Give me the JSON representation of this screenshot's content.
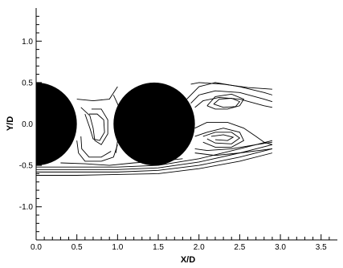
{
  "chart_data": {
    "type": "line",
    "title": "",
    "xlabel": "X/D",
    "ylabel": "Y/D",
    "xlim": [
      0,
      3.7
    ],
    "ylim": [
      -1.4,
      1.4
    ],
    "x_ticks": [
      {
        "value": 0,
        "label": "0.0"
      },
      {
        "value": 0.5,
        "label": "0.5"
      },
      {
        "value": 1.0,
        "label": "1.0"
      },
      {
        "value": 1.5,
        "label": "1.5"
      },
      {
        "value": 2.0,
        "label": "2.0"
      },
      {
        "value": 2.5,
        "label": "2.5"
      },
      {
        "value": 3.0,
        "label": "3.0"
      },
      {
        "value": 3.5,
        "label": "3.5"
      }
    ],
    "y_ticks": [
      {
        "value": 1.0,
        "label": "1.0"
      },
      {
        "value": 0.5,
        "label": "0.5"
      },
      {
        "value": 0.0,
        "label": "0.0"
      },
      {
        "value": -0.5,
        "label": "-0.5"
      },
      {
        "value": -1.0,
        "label": "-1.0"
      }
    ],
    "cylinders": [
      {
        "center_x": 0.0,
        "center_y": 0.0,
        "radius": 0.5
      },
      {
        "center_x": 1.45,
        "center_y": 0.0,
        "radius": 0.5
      }
    ],
    "series": [
      {
        "points": [
          [
            0.5,
            0.3
          ],
          [
            0.7,
            0.28
          ],
          [
            0.9,
            0.3
          ],
          [
            1.0,
            0.45
          ]
        ]
      },
      {
        "points": [
          [
            0.55,
            0.2
          ],
          [
            0.66,
            0.1
          ],
          [
            0.7,
            -0.05
          ],
          [
            0.72,
            -0.2
          ],
          [
            0.8,
            -0.25
          ],
          [
            0.88,
            -0.12
          ],
          [
            0.88,
            0.05
          ],
          [
            0.8,
            0.18
          ],
          [
            0.68,
            0.18
          ]
        ]
      },
      {
        "points": [
          [
            0.6,
            0.12
          ],
          [
            0.66,
            -0.05
          ],
          [
            0.7,
            -0.18
          ],
          [
            0.78,
            -0.2
          ],
          [
            0.84,
            -0.1
          ],
          [
            0.83,
            0.05
          ],
          [
            0.75,
            0.12
          ],
          [
            0.65,
            0.12
          ]
        ]
      },
      {
        "points": [
          [
            0.5,
            -0.2
          ],
          [
            0.52,
            -0.35
          ],
          [
            0.6,
            -0.45
          ],
          [
            0.8,
            -0.45
          ],
          [
            0.95,
            -0.4
          ],
          [
            1.0,
            -0.25
          ]
        ]
      },
      {
        "points": [
          [
            0.55,
            -0.15
          ],
          [
            0.56,
            -0.3
          ],
          [
            0.65,
            -0.4
          ],
          [
            0.8,
            -0.4
          ],
          [
            0.92,
            -0.33
          ]
        ]
      },
      {
        "points": [
          [
            0.95,
            0.35
          ],
          [
            1.02,
            0.2
          ],
          [
            1.0,
            0.0
          ],
          [
            1.0,
            -0.2
          ],
          [
            0.98,
            -0.35
          ]
        ]
      },
      {
        "points": [
          [
            0.0,
            -0.52
          ],
          [
            0.5,
            -0.52
          ],
          [
            1.0,
            -0.52
          ],
          [
            1.5,
            -0.5
          ],
          [
            2.0,
            -0.42
          ],
          [
            2.5,
            -0.3
          ],
          [
            2.9,
            -0.2
          ]
        ]
      },
      {
        "points": [
          [
            0.0,
            -0.55
          ],
          [
            0.5,
            -0.55
          ],
          [
            1.0,
            -0.55
          ],
          [
            1.5,
            -0.53
          ],
          [
            2.0,
            -0.46
          ],
          [
            2.5,
            -0.35
          ],
          [
            2.9,
            -0.25
          ]
        ]
      },
      {
        "points": [
          [
            0.0,
            -0.58
          ],
          [
            0.5,
            -0.58
          ],
          [
            1.0,
            -0.58
          ],
          [
            1.5,
            -0.56
          ],
          [
            2.0,
            -0.5
          ],
          [
            2.5,
            -0.4
          ],
          [
            2.9,
            -0.3
          ]
        ]
      },
      {
        "points": [
          [
            0.0,
            -0.62
          ],
          [
            0.5,
            -0.62
          ],
          [
            1.0,
            -0.61
          ],
          [
            1.5,
            -0.6
          ],
          [
            2.0,
            -0.54
          ],
          [
            2.5,
            -0.45
          ],
          [
            2.9,
            -0.35
          ]
        ]
      },
      {
        "points": [
          [
            0.3,
            -0.47
          ],
          [
            0.6,
            -0.48
          ],
          [
            0.9,
            -0.5
          ],
          [
            1.2,
            -0.47
          ],
          [
            1.5,
            -0.45
          ],
          [
            1.8,
            -0.42
          ]
        ]
      },
      {
        "points": [
          [
            1.85,
            0.3
          ],
          [
            2.0,
            0.45
          ],
          [
            2.2,
            0.5
          ],
          [
            2.5,
            0.45
          ],
          [
            2.8,
            0.38
          ],
          [
            2.9,
            0.35
          ]
        ]
      },
      {
        "points": [
          [
            1.9,
            0.25
          ],
          [
            2.0,
            0.35
          ],
          [
            2.2,
            0.4
          ],
          [
            2.5,
            0.38
          ],
          [
            2.8,
            0.3
          ],
          [
            2.9,
            0.27
          ]
        ]
      },
      {
        "points": [
          [
            1.95,
            0.2
          ],
          [
            2.05,
            0.28
          ],
          [
            2.25,
            0.32
          ],
          [
            2.5,
            0.3
          ],
          [
            2.8,
            0.22
          ],
          [
            2.9,
            0.2
          ]
        ]
      },
      {
        "points": [
          [
            2.1,
            0.22
          ],
          [
            2.2,
            0.33
          ],
          [
            2.4,
            0.36
          ],
          [
            2.55,
            0.3
          ],
          [
            2.5,
            0.22
          ],
          [
            2.35,
            0.18
          ],
          [
            2.2,
            0.18
          ],
          [
            2.1,
            0.22
          ]
        ]
      },
      {
        "points": [
          [
            2.18,
            0.24
          ],
          [
            2.25,
            0.3
          ],
          [
            2.4,
            0.31
          ],
          [
            2.5,
            0.27
          ],
          [
            2.45,
            0.21
          ],
          [
            2.3,
            0.2
          ],
          [
            2.18,
            0.24
          ]
        ]
      },
      {
        "points": [
          [
            1.95,
            -0.05
          ],
          [
            2.1,
            0.02
          ],
          [
            2.35,
            0.02
          ],
          [
            2.55,
            -0.05
          ],
          [
            2.7,
            -0.15
          ],
          [
            2.8,
            -0.22
          ],
          [
            2.9,
            -0.25
          ]
        ]
      },
      {
        "points": [
          [
            1.95,
            -0.15
          ],
          [
            2.1,
            -0.1
          ],
          [
            2.3,
            -0.05
          ],
          [
            2.5,
            -0.1
          ],
          [
            2.55,
            -0.2
          ],
          [
            2.4,
            -0.28
          ],
          [
            2.2,
            -0.28
          ],
          [
            2.05,
            -0.22
          ]
        ]
      },
      {
        "points": [
          [
            2.05,
            -0.15
          ],
          [
            2.2,
            -0.1
          ],
          [
            2.4,
            -0.1
          ],
          [
            2.5,
            -0.17
          ],
          [
            2.4,
            -0.24
          ],
          [
            2.2,
            -0.23
          ],
          [
            2.1,
            -0.18
          ]
        ]
      },
      {
        "points": [
          [
            2.15,
            -0.15
          ],
          [
            2.3,
            -0.13
          ],
          [
            2.42,
            -0.16
          ],
          [
            2.35,
            -0.2
          ],
          [
            2.2,
            -0.19
          ]
        ]
      },
      {
        "points": [
          [
            1.95,
            -0.3
          ],
          [
            2.1,
            -0.32
          ],
          [
            2.4,
            -0.3
          ],
          [
            2.7,
            -0.25
          ],
          [
            2.9,
            -0.22
          ]
        ]
      },
      {
        "points": [
          [
            1.95,
            -0.35
          ],
          [
            2.2,
            -0.38
          ],
          [
            2.5,
            -0.35
          ],
          [
            2.9,
            -0.3
          ]
        ]
      },
      {
        "points": [
          [
            1.9,
            0.48
          ],
          [
            2.0,
            0.5
          ],
          [
            2.3,
            0.48
          ],
          [
            2.6,
            0.44
          ],
          [
            2.9,
            0.42
          ]
        ]
      }
    ]
  }
}
